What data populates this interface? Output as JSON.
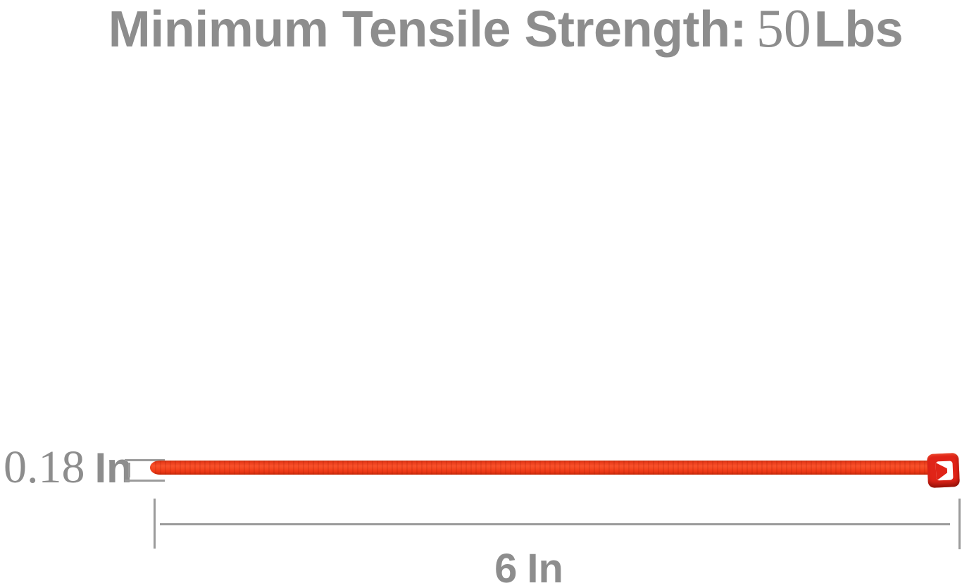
{
  "figure": {
    "title": {
      "text": "Minimum Tensile Strength:",
      "value": "50",
      "unit": "Lbs"
    },
    "product": {
      "name": "red-cable-zip-tie"
    },
    "annotations": {
      "thickness": {
        "value": "0.18",
        "unit": "In"
      },
      "length": {
        "value": "6",
        "unit": "In"
      }
    }
  },
  "colors": {
    "label_gray": "#8d8d8d",
    "dim_line_gray": "#9b9b9b",
    "strap_red": "#f2421c",
    "strap_dark": "#c22706",
    "head_red": "#e02418",
    "head_shadow": "#8f0f08",
    "slot_white": "#ffffff",
    "page_bg": "#ffffff"
  }
}
